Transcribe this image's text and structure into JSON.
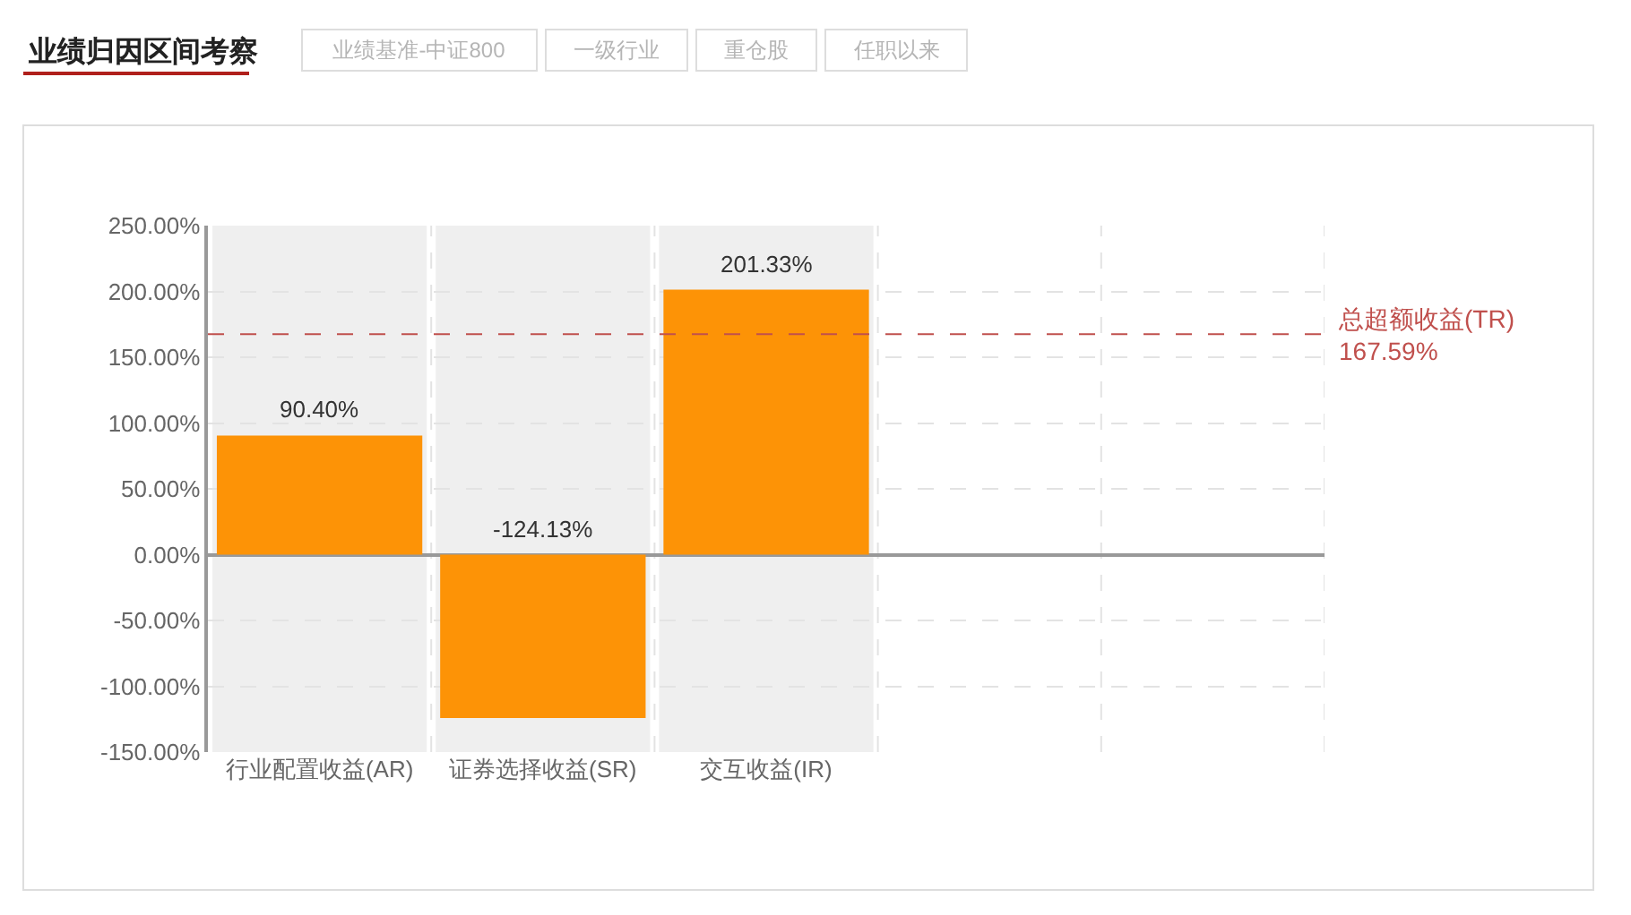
{
  "chart_data": {
    "type": "bar",
    "title": "业绩归因区间考察",
    "annotations": [
      "业绩基准-中证800",
      "一级行业",
      "重仓股",
      "任职以来"
    ],
    "categories": [
      "行业配置收益(AR)",
      "证券选择收益(SR)",
      "交互收益(IR)",
      null,
      null
    ],
    "values": [
      90.4,
      -124.13,
      201.33,
      null,
      null
    ],
    "value_labels": [
      "90.40%",
      "-124.13%",
      "201.33%",
      null,
      null
    ],
    "color": "#fd9306",
    "ylim": [
      -150,
      250
    ],
    "yticks": [
      {
        "value": -150,
        "label": "-150.00%"
      },
      {
        "value": -100,
        "label": "-100.00%"
      },
      {
        "value": -50,
        "label": "-50.00%"
      },
      {
        "value": 0,
        "label": "0.00%"
      },
      {
        "value": 50,
        "label": "50.00%"
      },
      {
        "value": 100,
        "label": "100.00%"
      },
      {
        "value": 150,
        "label": "150.00%"
      },
      {
        "value": 200,
        "label": "200.00%"
      },
      {
        "value": 250,
        "label": "250.00%"
      }
    ],
    "grid": true,
    "ref_lines": [
      {
        "axis": "y",
        "value": 167.59,
        "label": "总超额收益(TR)\n167.59%",
        "color": "#c0504d",
        "line_style": "dashed"
      }
    ],
    "bands": [
      {
        "axis": "x",
        "from": "行业配置收益(AR)",
        "to": "行业配置收益(AR)",
        "color": "#efefef"
      },
      {
        "axis": "x",
        "from": "证券选择收益(SR)",
        "to": "证券选择收益(SR)",
        "color": "#efefef"
      },
      {
        "axis": "x",
        "from": "交互收益(IR)",
        "to": "交互收益(IR)",
        "color": "#efefef"
      }
    ]
  }
}
